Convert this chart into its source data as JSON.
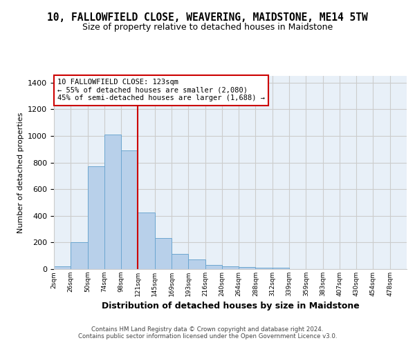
{
  "title": "10, FALLOWFIELD CLOSE, WEAVERING, MAIDSTONE, ME14 5TW",
  "subtitle": "Size of property relative to detached houses in Maidstone",
  "xlabel": "Distribution of detached houses by size in Maidstone",
  "ylabel": "Number of detached properties",
  "bar_heights": [
    20,
    200,
    770,
    1010,
    890,
    425,
    235,
    115,
    70,
    30,
    22,
    18,
    10,
    12,
    0,
    0,
    0,
    0,
    0,
    0
  ],
  "x_tick_labels": [
    "2sqm",
    "26sqm",
    "50sqm",
    "74sqm",
    "98sqm",
    "121sqm",
    "145sqm",
    "169sqm",
    "193sqm",
    "216sqm",
    "240sqm",
    "264sqm",
    "288sqm",
    "312sqm",
    "339sqm",
    "359sqm",
    "383sqm",
    "407sqm",
    "430sqm",
    "454sqm",
    "478sqm"
  ],
  "bar_color": "#b8d0ea",
  "bar_edge_color": "#6ca6d0",
  "property_line_x": 4.0,
  "property_line_color": "#cc0000",
  "ylim": [
    0,
    1450
  ],
  "yticks": [
    0,
    200,
    400,
    600,
    800,
    1000,
    1200,
    1400
  ],
  "annotation_text": "10 FALLOWFIELD CLOSE: 123sqm\n← 55% of detached houses are smaller (2,080)\n45% of semi-detached houses are larger (1,688) →",
  "annotation_box_color": "#cc0000",
  "grid_color": "#cccccc",
  "background_color": "#e8f0f8",
  "footer_line1": "Contains HM Land Registry data © Crown copyright and database right 2024.",
  "footer_line2": "Contains public sector information licensed under the Open Government Licence v3.0."
}
